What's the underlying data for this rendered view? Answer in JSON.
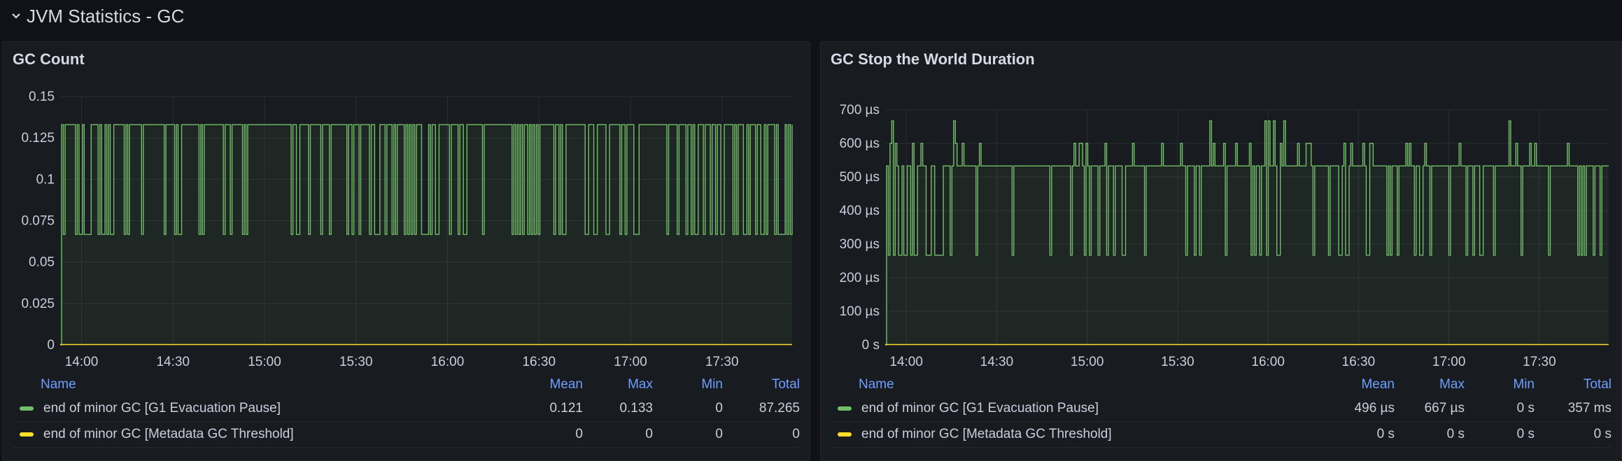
{
  "row": {
    "title": "JVM Statistics - GC"
  },
  "colors": {
    "series_green": "#73bf69",
    "series_yellow": "#fade2a",
    "grid": "#2a2c33",
    "axis_text": "#ccccdc",
    "legend_header": "#6e9fff"
  },
  "icons": {
    "row_toggle": "chevron-down-icon"
  },
  "chart_data": [
    {
      "type": "line",
      "title": "GC Count",
      "x_ticks": [
        "14:00",
        "14:30",
        "15:00",
        "15:30",
        "16:00",
        "16:30",
        "17:00",
        "17:30"
      ],
      "x_range": [
        "13:53",
        "17:53"
      ],
      "ylim": [
        0,
        0.15
      ],
      "y_ticks": [
        "0",
        "0.025",
        "0.05",
        "0.075",
        "0.1",
        "0.125",
        "0.15"
      ],
      "y_tick_values": [
        0,
        0.025,
        0.05,
        0.075,
        0.1,
        0.125,
        0.15
      ],
      "grid": true,
      "legend_placement": "bottom",
      "series": [
        {
          "name": "end of minor GC [G1 Evacuation Pause]",
          "color": "#73bf69",
          "levels": [
            0.0667,
            0.133
          ],
          "typical_value": 0.133,
          "stats": {
            "mean": "0.121",
            "max": "0.133",
            "min": "0",
            "total": "87.265"
          }
        },
        {
          "name": "end of minor GC [Metadata GC Threshold]",
          "color": "#fade2a",
          "levels": [
            0
          ],
          "typical_value": 0,
          "stats": {
            "mean": "0",
            "max": "0",
            "min": "0",
            "total": "0"
          }
        }
      ],
      "legend_columns": [
        "Name",
        "Mean",
        "Max",
        "Min",
        "Total"
      ]
    },
    {
      "type": "line",
      "title": "GC Stop the World Duration",
      "x_ticks": [
        "14:00",
        "14:30",
        "15:00",
        "15:30",
        "16:00",
        "16:30",
        "17:00",
        "17:30"
      ],
      "x_range": [
        "13:53",
        "17:53"
      ],
      "ylim": [
        0,
        700
      ],
      "y_ticks": [
        "0 s",
        "100 µs",
        "200 µs",
        "300 µs",
        "400 µs",
        "500 µs",
        "600 µs",
        "700 µs"
      ],
      "y_tick_values": [
        0,
        100,
        200,
        300,
        400,
        500,
        600,
        700
      ],
      "y_unit": "µs",
      "grid": true,
      "legend_placement": "bottom",
      "series": [
        {
          "name": "end of minor GC [G1 Evacuation Pause]",
          "color": "#73bf69",
          "levels": [
            267,
            533,
            600,
            667
          ],
          "typical_value": 533,
          "stats": {
            "mean": "496 µs",
            "max": "667 µs",
            "min": "0 s",
            "total": "357 ms"
          }
        },
        {
          "name": "end of minor GC [Metadata GC Threshold]",
          "color": "#fade2a",
          "levels": [
            0
          ],
          "typical_value": 0,
          "stats": {
            "mean": "0 s",
            "max": "0 s",
            "min": "0 s",
            "total": "0 s"
          }
        }
      ],
      "legend_columns": [
        "Name",
        "Mean",
        "Max",
        "Min",
        "Total"
      ]
    }
  ]
}
